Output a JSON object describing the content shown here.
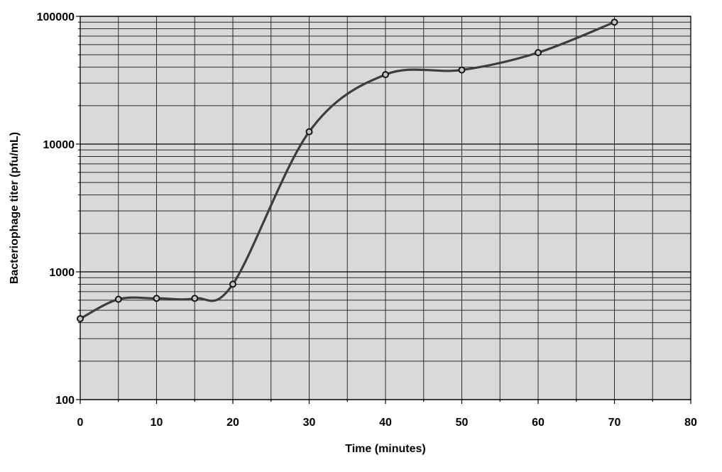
{
  "chart_data": {
    "type": "line",
    "series": [
      {
        "name": "Bacteriophage titer",
        "x": [
          0,
          5,
          10,
          15,
          20,
          30,
          40,
          50,
          60,
          70
        ],
        "values": [
          430,
          610,
          620,
          620,
          800,
          12500,
          35000,
          38000,
          52000,
          90000
        ]
      }
    ],
    "xlabel": "Time (minutes)",
    "ylabel": "Bacteriophage titer (pfu/mL)",
    "xlim": [
      0,
      80
    ],
    "ylim": [
      100,
      100000
    ],
    "yscale": "log",
    "x_major_ticks": [
      0,
      10,
      20,
      30,
      40,
      50,
      60,
      70,
      80
    ],
    "x_minor_step": 5,
    "y_major_ticks": [
      100,
      1000,
      10000,
      100000
    ],
    "y_minor": "2-9 per decade",
    "grid": "major and minor, dark lines on gray plot area",
    "legend": "none",
    "marker": "open-circle",
    "line_style": "smoothed",
    "colors": {
      "line": "#3d3d3d",
      "marker_fill": "#c4c4c4",
      "marker_stroke": "#141414",
      "plot_bg": "#d9d9d9",
      "grid": "#2a2a2a",
      "axis": "#000000"
    }
  }
}
